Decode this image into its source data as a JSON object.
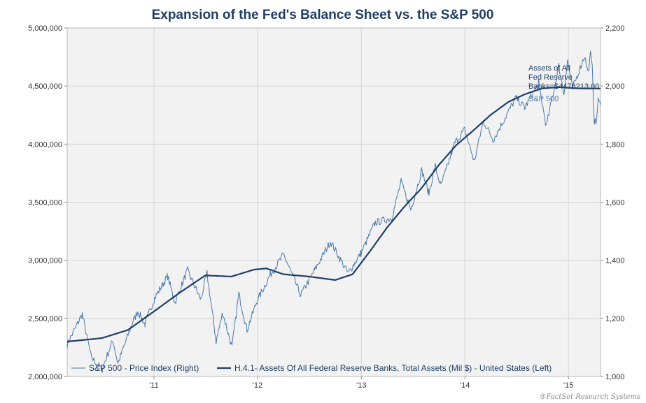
{
  "chart_data": {
    "type": "line",
    "title": "Expansion of the Fed's Balance Sheet vs. the S&P 500",
    "x_axis": {
      "range": [
        "2010-03-01",
        "2015-04-24"
      ],
      "tick_labels": [
        "'11",
        "'12",
        "'13",
        "'14",
        "'15"
      ],
      "tick_dates": [
        "2011-01-01",
        "2012-01-01",
        "2013-01-01",
        "2014-01-01",
        "2015-01-01"
      ]
    },
    "y_left": {
      "range": [
        2000000,
        5000000
      ],
      "tick_values": [
        2000000,
        2500000,
        3000000,
        3500000,
        4000000,
        4500000,
        5000000
      ],
      "tick_labels": [
        "2,000,000",
        "2,500,000",
        "3,000,000",
        "3,500,000",
        "4,000,000",
        "4,500,000",
        "5,000,000"
      ]
    },
    "y_right": {
      "range": [
        1000,
        2200
      ],
      "tick_values": [
        1000,
        1200,
        1400,
        1600,
        1800,
        2000,
        2200
      ],
      "tick_labels": [
        "1,000",
        "1,200",
        "1,400",
        "1,600",
        "1,800",
        "2,000",
        "2,200"
      ]
    },
    "grid": true,
    "legend_placement": "bottom",
    "series": [
      {
        "name": "S&P 500 - Price Index  (Right)",
        "axis": "right",
        "color": "#4a78a8",
        "style": "thin",
        "points": [
          [
            "2010-03-01",
            1110
          ],
          [
            "2010-04-23",
            1215
          ],
          [
            "2010-05-25",
            1065
          ],
          [
            "2010-07-02",
            1025
          ],
          [
            "2010-08-09",
            1125
          ],
          [
            "2010-08-27",
            1045
          ],
          [
            "2010-10-15",
            1180
          ],
          [
            "2010-11-05",
            1225
          ],
          [
            "2010-11-30",
            1180
          ],
          [
            "2011-01-03",
            1270
          ],
          [
            "2011-02-18",
            1345
          ],
          [
            "2011-03-16",
            1255
          ],
          [
            "2011-04-29",
            1365
          ],
          [
            "2011-06-15",
            1265
          ],
          [
            "2011-07-07",
            1355
          ],
          [
            "2011-08-08",
            1120
          ],
          [
            "2011-08-31",
            1220
          ],
          [
            "2011-10-03",
            1100
          ],
          [
            "2011-10-27",
            1285
          ],
          [
            "2011-11-25",
            1160
          ],
          [
            "2011-12-30",
            1260
          ],
          [
            "2012-02-15",
            1350
          ],
          [
            "2012-04-02",
            1420
          ],
          [
            "2012-06-01",
            1280
          ],
          [
            "2012-07-20",
            1365
          ],
          [
            "2012-09-14",
            1465
          ],
          [
            "2012-11-15",
            1355
          ],
          [
            "2012-12-31",
            1425
          ],
          [
            "2013-02-19",
            1530
          ],
          [
            "2013-04-18",
            1545
          ],
          [
            "2013-05-21",
            1670
          ],
          [
            "2013-06-24",
            1575
          ],
          [
            "2013-08-02",
            1710
          ],
          [
            "2013-08-27",
            1630
          ],
          [
            "2013-09-18",
            1725
          ],
          [
            "2013-10-08",
            1655
          ],
          [
            "2013-11-27",
            1805
          ],
          [
            "2013-12-31",
            1850
          ],
          [
            "2014-02-03",
            1740
          ],
          [
            "2014-03-07",
            1880
          ],
          [
            "2014-04-11",
            1815
          ],
          [
            "2014-06-30",
            1960
          ],
          [
            "2014-07-31",
            1925
          ],
          [
            "2014-09-18",
            2010
          ],
          [
            "2014-10-15",
            1860
          ],
          [
            "2014-11-28",
            2070
          ],
          [
            "2014-12-16",
            1975
          ],
          [
            "2014-12-29",
            2090
          ],
          [
            "2015-01-15",
            1990
          ],
          [
            "2015-02-27",
            2105
          ],
          [
            "2015-03-11",
            2045
          ],
          [
            "2015-03-20",
            2110
          ],
          [
            "2015-03-26",
            2060
          ],
          [
            "2015-04-02",
            1880
          ],
          [
            "2015-04-08",
            1870
          ],
          [
            "2015-04-16",
            1950
          ],
          [
            "2015-04-24",
            1935
          ]
        ]
      },
      {
        "name": "H.4.1- Assets Of All Federal Reserve Banks, Total Assets (Mil $) - United States  (Left)",
        "axis": "left",
        "color": "#1f3f66",
        "style": "thick",
        "points": [
          [
            "2010-03-01",
            2300000
          ],
          [
            "2010-07-01",
            2330000
          ],
          [
            "2010-10-01",
            2400000
          ],
          [
            "2011-01-01",
            2560000
          ],
          [
            "2011-04-01",
            2720000
          ],
          [
            "2011-07-01",
            2870000
          ],
          [
            "2011-10-01",
            2860000
          ],
          [
            "2011-12-20",
            2920000
          ],
          [
            "2012-02-01",
            2930000
          ],
          [
            "2012-04-01",
            2880000
          ],
          [
            "2012-07-01",
            2860000
          ],
          [
            "2012-10-01",
            2830000
          ],
          [
            "2012-12-01",
            2880000
          ],
          [
            "2013-02-01",
            3080000
          ],
          [
            "2013-04-01",
            3280000
          ],
          [
            "2013-06-01",
            3460000
          ],
          [
            "2013-08-01",
            3620000
          ],
          [
            "2013-10-01",
            3820000
          ],
          [
            "2013-12-01",
            3990000
          ],
          [
            "2014-02-01",
            4120000
          ],
          [
            "2014-04-01",
            4250000
          ],
          [
            "2014-06-01",
            4360000
          ],
          [
            "2014-08-01",
            4430000
          ],
          [
            "2014-10-01",
            4480000
          ],
          [
            "2014-12-01",
            4490000
          ],
          [
            "2015-02-01",
            4480000
          ],
          [
            "2015-04-24",
            4478213
          ]
        ]
      }
    ],
    "annotations": [
      {
        "text": "Assets of All\nFed Reserve\nBanks=$4478213.00",
        "series": 1
      },
      {
        "text": "S&P 500",
        "series": 0
      }
    ],
    "source": "FactSet Research Systems"
  }
}
